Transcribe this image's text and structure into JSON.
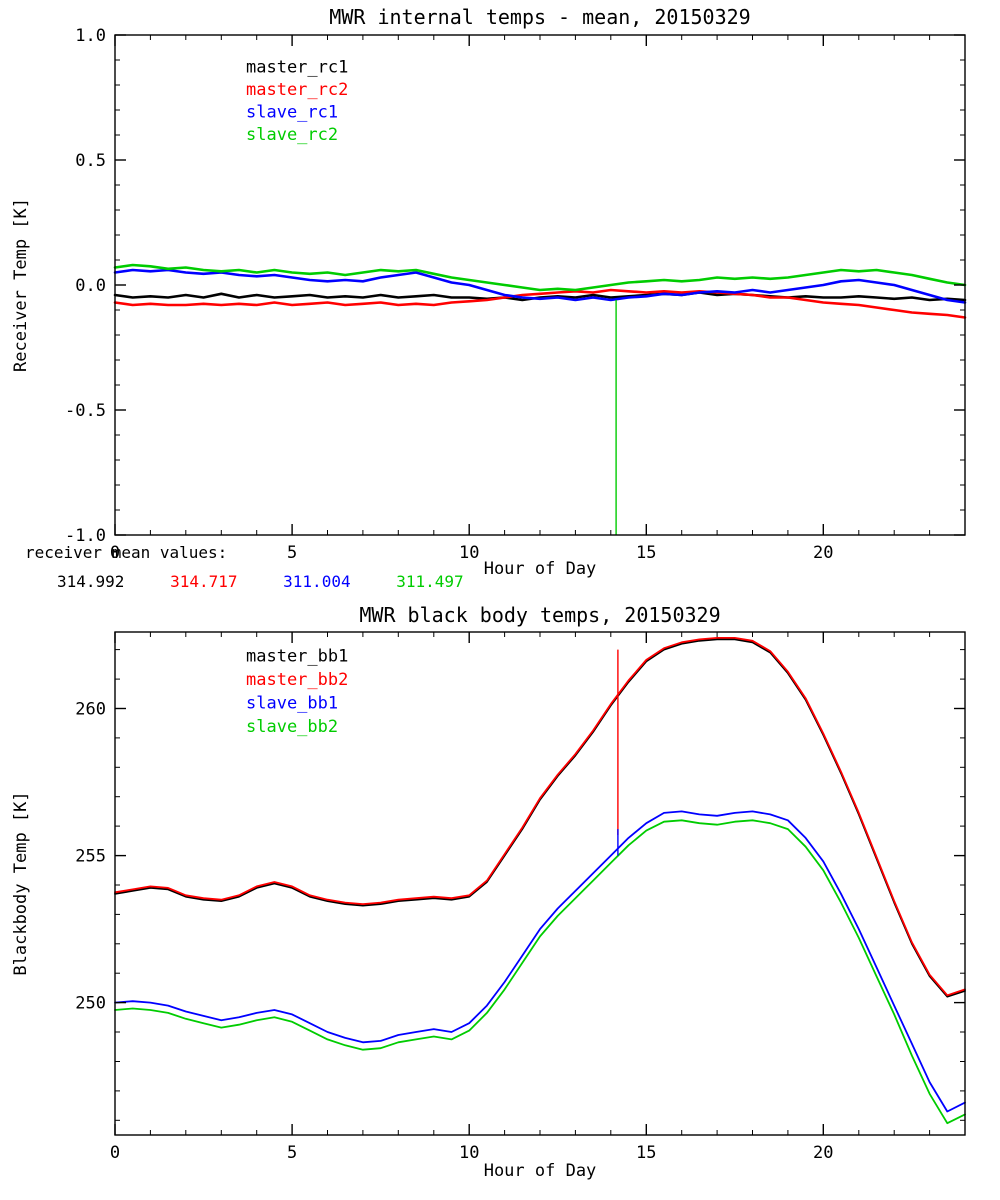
{
  "page": {
    "background": "#ffffff"
  },
  "mean_values": {
    "label": "receiver mean values:",
    "values": [
      {
        "name": "master_rc1",
        "text": "314.992",
        "color": "#000000"
      },
      {
        "name": "master_rc2",
        "text": "314.717",
        "color": "#ff0000"
      },
      {
        "name": "slave_rc1",
        "text": "311.004",
        "color": "#0000ff"
      },
      {
        "name": "slave_rc2",
        "text": "311.497",
        "color": "#00cc00"
      }
    ]
  },
  "chart_data": [
    {
      "type": "line",
      "title": "MWR internal temps - mean, 20150329",
      "xlabel": "Hour of Day",
      "ylabel": "Receiver Temp [K]",
      "xlim": [
        0,
        24
      ],
      "ylim": [
        -1.0,
        1.0
      ],
      "xticks": [
        0,
        5,
        10,
        15,
        20
      ],
      "xtick_labels": [
        "0",
        "5",
        "10",
        "15",
        "20"
      ],
      "xminor_step": 1,
      "yticks": [
        -1.0,
        -0.5,
        0.0,
        0.5,
        1.0
      ],
      "ytick_labels": [
        "-1.0",
        "-0.5",
        "0.0",
        "0.5",
        "1.0"
      ],
      "yminor_step": 0.1,
      "grid": false,
      "legend": {
        "position": "upper-left-inside",
        "x": 3.7,
        "y": 0.85,
        "dy": 0.09
      },
      "line_width": 2.6,
      "x_start": 0,
      "x_step": 0.5,
      "series": [
        {
          "name": "master_rc1",
          "color": "#000000",
          "y": [
            -0.04,
            -0.05,
            -0.045,
            -0.05,
            -0.04,
            -0.05,
            -0.035,
            -0.05,
            -0.04,
            -0.05,
            -0.045,
            -0.04,
            -0.05,
            -0.045,
            -0.05,
            -0.04,
            -0.05,
            -0.045,
            -0.04,
            -0.05,
            -0.05,
            -0.055,
            -0.05,
            -0.06,
            -0.05,
            -0.045,
            -0.05,
            -0.04,
            -0.05,
            -0.045,
            -0.04,
            -0.035,
            -0.04,
            -0.03,
            -0.04,
            -0.035,
            -0.04,
            -0.045,
            -0.05,
            -0.045,
            -0.05,
            -0.05,
            -0.045,
            -0.05,
            -0.055,
            -0.05,
            -0.06,
            -0.055,
            -0.06
          ]
        },
        {
          "name": "master_rc2",
          "color": "#ff0000",
          "y": [
            -0.07,
            -0.08,
            -0.075,
            -0.08,
            -0.08,
            -0.075,
            -0.08,
            -0.075,
            -0.08,
            -0.07,
            -0.08,
            -0.075,
            -0.07,
            -0.08,
            -0.075,
            -0.07,
            -0.08,
            -0.075,
            -0.08,
            -0.07,
            -0.065,
            -0.06,
            -0.05,
            -0.04,
            -0.035,
            -0.03,
            -0.025,
            -0.03,
            -0.02,
            -0.025,
            -0.03,
            -0.025,
            -0.03,
            -0.025,
            -0.03,
            -0.035,
            -0.04,
            -0.05,
            -0.05,
            -0.06,
            -0.07,
            -0.075,
            -0.08,
            -0.09,
            -0.1,
            -0.11,
            -0.115,
            -0.12,
            -0.13
          ]
        },
        {
          "name": "slave_rc1",
          "color": "#0000ff",
          "y": [
            0.05,
            0.06,
            0.055,
            0.06,
            0.05,
            0.045,
            0.05,
            0.04,
            0.035,
            0.04,
            0.03,
            0.02,
            0.015,
            0.02,
            0.015,
            0.03,
            0.04,
            0.05,
            0.03,
            0.01,
            0.0,
            -0.02,
            -0.04,
            -0.05,
            -0.055,
            -0.05,
            -0.06,
            -0.05,
            -0.06,
            -0.05,
            -0.045,
            -0.035,
            -0.04,
            -0.03,
            -0.025,
            -0.03,
            -0.02,
            -0.03,
            -0.02,
            -0.01,
            0.0,
            0.015,
            0.02,
            0.01,
            0.0,
            -0.02,
            -0.04,
            -0.06,
            -0.07
          ]
        },
        {
          "name": "slave_rc2",
          "color": "#00cc00",
          "y": [
            0.07,
            0.08,
            0.075,
            0.065,
            0.07,
            0.06,
            0.055,
            0.06,
            0.05,
            0.06,
            0.05,
            0.045,
            0.05,
            0.04,
            0.05,
            0.06,
            0.055,
            0.06,
            0.045,
            0.03,
            0.02,
            0.01,
            0.0,
            -0.01,
            -0.02,
            -0.015,
            -0.02,
            -0.01,
            0.0,
            0.01,
            0.015,
            0.02,
            0.015,
            0.02,
            0.03,
            0.025,
            0.03,
            0.025,
            0.03,
            0.04,
            0.05,
            0.06,
            0.055,
            0.06,
            0.05,
            0.04,
            0.025,
            0.01,
            0.0
          ]
        }
      ],
      "annotations": [
        {
          "type": "vline",
          "x": 14.15,
          "y1": -1.0,
          "y2": -0.06,
          "color": "#00cc00"
        }
      ]
    },
    {
      "type": "line",
      "title": "MWR black body temps, 20150329",
      "xlabel": "Hour of Day",
      "ylabel": "Blackbody Temp [K]",
      "xlim": [
        0,
        24
      ],
      "ylim": [
        245.5,
        262.6
      ],
      "xticks": [
        0,
        5,
        10,
        15,
        20
      ],
      "xtick_labels": [
        "0",
        "5",
        "10",
        "15",
        "20"
      ],
      "xminor_step": 1,
      "yticks": [
        250,
        255,
        260
      ],
      "ytick_labels": [
        "250",
        "255",
        "260"
      ],
      "yminor_step": 1,
      "grid": false,
      "legend": {
        "position": "upper-left-inside",
        "x": 3.7,
        "y": 261.6,
        "dy": 0.8
      },
      "line_width": 1.8,
      "x_start": 0,
      "x_step": 0.5,
      "series": [
        {
          "name": "master_bb1",
          "color": "#000000",
          "y": [
            253.7,
            253.8,
            253.9,
            253.85,
            253.6,
            253.5,
            253.45,
            253.6,
            253.9,
            254.05,
            253.9,
            253.6,
            253.45,
            253.35,
            253.3,
            253.35,
            253.45,
            253.5,
            253.55,
            253.5,
            253.6,
            254.1,
            255.0,
            255.9,
            256.9,
            257.7,
            258.4,
            259.2,
            260.1,
            260.9,
            261.6,
            262.0,
            262.2,
            262.3,
            262.35,
            262.35,
            262.25,
            261.9,
            261.2,
            260.3,
            259.1,
            257.8,
            256.4,
            254.9,
            253.4,
            252.0,
            250.9,
            250.2,
            250.4
          ]
        },
        {
          "name": "master_bb2",
          "color": "#ff0000",
          "y": [
            253.75,
            253.85,
            253.95,
            253.9,
            253.65,
            253.55,
            253.5,
            253.65,
            253.95,
            254.1,
            253.95,
            253.65,
            253.5,
            253.4,
            253.35,
            253.4,
            253.5,
            253.55,
            253.6,
            253.55,
            253.65,
            254.15,
            255.05,
            255.95,
            256.95,
            257.75,
            258.45,
            259.25,
            260.15,
            260.95,
            261.65,
            262.05,
            262.25,
            262.35,
            262.4,
            262.4,
            262.3,
            261.95,
            261.25,
            260.35,
            259.15,
            257.85,
            256.45,
            254.95,
            253.45,
            252.05,
            250.95,
            250.25,
            250.45
          ]
        },
        {
          "name": "slave_bb1",
          "color": "#0000ff",
          "y": [
            250.0,
            250.05,
            250.0,
            249.9,
            249.7,
            249.55,
            249.4,
            249.5,
            249.65,
            249.75,
            249.6,
            249.3,
            249.0,
            248.8,
            248.65,
            248.7,
            248.9,
            249.0,
            249.1,
            249.0,
            249.3,
            249.9,
            250.7,
            251.6,
            252.5,
            253.2,
            253.8,
            254.4,
            255.0,
            255.6,
            256.1,
            256.45,
            256.5,
            256.4,
            256.35,
            256.45,
            256.5,
            256.4,
            256.2,
            255.6,
            254.8,
            253.7,
            252.5,
            251.2,
            249.9,
            248.6,
            247.3,
            246.3,
            246.6
          ]
        },
        {
          "name": "slave_bb2",
          "color": "#00cc00",
          "y": [
            249.75,
            249.8,
            249.75,
            249.65,
            249.45,
            249.3,
            249.15,
            249.25,
            249.4,
            249.5,
            249.35,
            249.05,
            248.75,
            248.55,
            248.4,
            248.45,
            248.65,
            248.75,
            248.85,
            248.75,
            249.05,
            249.65,
            250.45,
            251.35,
            252.25,
            252.95,
            253.55,
            254.15,
            254.75,
            255.35,
            255.85,
            256.15,
            256.2,
            256.1,
            256.05,
            256.15,
            256.2,
            256.1,
            255.9,
            255.3,
            254.5,
            253.4,
            252.2,
            250.9,
            249.6,
            248.2,
            246.9,
            245.9,
            246.2
          ]
        }
      ],
      "annotations": [
        {
          "type": "vline",
          "x": 14.2,
          "y1": 255.7,
          "y2": 262.0,
          "color": "#ff0000"
        },
        {
          "type": "vline",
          "x": 14.2,
          "y1": 255.0,
          "y2": 255.9,
          "color": "#0000ff"
        }
      ]
    }
  ]
}
